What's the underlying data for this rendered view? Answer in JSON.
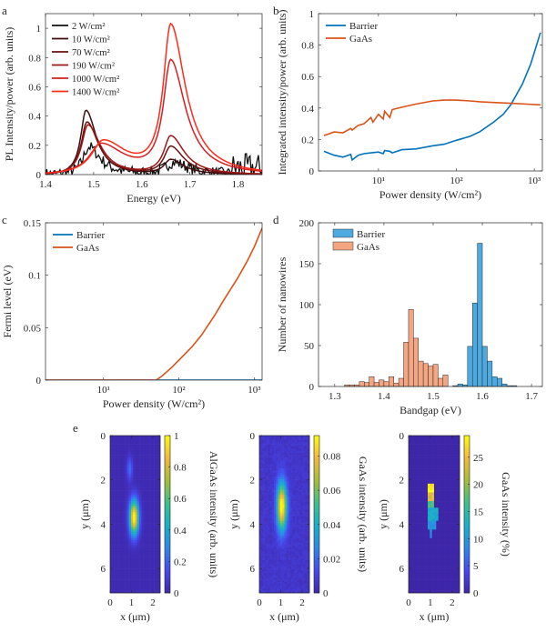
{
  "chart_data": [
    {
      "panel": "a",
      "type": "line",
      "xlabel": "Energy (eV)",
      "ylabel": "PL Intensity/power (arb. units)",
      "xlim": [
        1.4,
        1.85
      ],
      "ylim": [
        0,
        1.1
      ],
      "xticks": [
        1.4,
        1.5,
        1.6,
        1.7,
        1.8
      ],
      "xtick_labels": [
        "1.4",
        "1.5",
        "1.6",
        "1.7",
        "1.8"
      ],
      "yticks": [
        0,
        0.2,
        0.4,
        0.6,
        0.8,
        1
      ],
      "ytick_labels": [
        "0",
        "0.2",
        "0.4",
        "0.6",
        "0.8",
        "1"
      ],
      "legend": "top-left",
      "series": [
        {
          "name": "2 W/cm²",
          "color": "#111111",
          "noise": 0.05,
          "peaks": [
            {
              "center": 1.49,
              "height": 0.19,
              "width": 0.022
            },
            {
              "center": 1.665,
              "height": 0.08,
              "width": 0.03
            }
          ]
        },
        {
          "name": "10 W/cm²",
          "color": "#3f0d0d",
          "peaks": [
            {
              "center": 1.484,
              "height": 0.44,
              "width": 0.02
            },
            {
              "center": 1.66,
              "height": 0.1,
              "width": 0.025
            }
          ]
        },
        {
          "name": "70 W/cm²",
          "color": "#6a1111",
          "peaks": [
            {
              "center": 1.486,
              "height": 0.36,
              "width": 0.022
            },
            {
              "center": 1.66,
              "height": 0.19,
              "width": 0.025
            }
          ]
        },
        {
          "name": "190 W/cm²",
          "color": "#9e1616",
          "peaks": [
            {
              "center": 1.488,
              "height": 0.34,
              "width": 0.024
            },
            {
              "center": 1.66,
              "height": 0.26,
              "width": 0.026
            }
          ]
        },
        {
          "name": "1000 W/cm²",
          "color": "#d41f1f",
          "peaks": [
            {
              "center": 1.515,
              "height": 0.21,
              "width": 0.045
            },
            {
              "center": 1.66,
              "height": 0.76,
              "width": 0.028
            }
          ]
        },
        {
          "name": "1400 W/cm²",
          "color": "#ff2a1a",
          "peaks": [
            {
              "center": 1.52,
              "height": 0.23,
              "width": 0.045
            },
            {
              "center": 1.66,
              "height": 1.0,
              "width": 0.028
            }
          ]
        }
      ]
    },
    {
      "panel": "b",
      "type": "line",
      "xscale": "log",
      "xlabel": "Power density (W/cm²)",
      "ylabel": "Integrated intensity/power (arb. units)",
      "xlim": [
        1.7,
        1270
      ],
      "ylim": [
        0,
        1
      ],
      "xticks": [
        10,
        100,
        1000
      ],
      "xtick_labels": [
        "10¹",
        "10²",
        "10³"
      ],
      "yticks": [
        0,
        0.2,
        0.4,
        0.6,
        0.8,
        1
      ],
      "ytick_labels": [
        "0",
        "0.2",
        "0.4",
        "0.6",
        "0.8",
        "1"
      ],
      "legend": "top-left",
      "series": [
        {
          "name": "Barrier",
          "color": "#0072BD",
          "x": [
            2,
            2.7,
            3.5,
            4.4,
            4.6,
            5.5,
            6.5,
            8,
            10,
            11.5,
            12,
            14,
            15,
            20,
            30,
            50,
            70,
            100,
            150,
            200,
            300,
            400,
            500,
            700,
            900,
            1200
          ],
          "y": [
            0.125,
            0.1,
            0.088,
            0.105,
            0.07,
            0.1,
            0.11,
            0.115,
            0.12,
            0.11,
            0.13,
            0.125,
            0.115,
            0.135,
            0.14,
            0.16,
            0.17,
            0.195,
            0.22,
            0.25,
            0.31,
            0.36,
            0.42,
            0.55,
            0.68,
            0.88
          ]
        },
        {
          "name": "GaAs",
          "color": "#D95319",
          "x": [
            2,
            2.7,
            3.5,
            4.4,
            4.6,
            5.5,
            6.5,
            8,
            8.5,
            10,
            11.5,
            12,
            14,
            15,
            20,
            30,
            50,
            70,
            100,
            150,
            200,
            300,
            500,
            800,
            1200
          ],
          "y": [
            0.225,
            0.248,
            0.243,
            0.27,
            0.26,
            0.29,
            0.3,
            0.34,
            0.31,
            0.36,
            0.33,
            0.38,
            0.34,
            0.39,
            0.405,
            0.425,
            0.445,
            0.45,
            0.45,
            0.445,
            0.44,
            0.435,
            0.43,
            0.425,
            0.42
          ]
        }
      ]
    },
    {
      "panel": "c",
      "type": "line",
      "xscale": "log",
      "xlabel": "Power density (W/cm²)",
      "ylabel": "Fermi level (eV)",
      "xlim": [
        1.7,
        1270
      ],
      "ylim": [
        0,
        0.15
      ],
      "xticks": [
        10,
        100,
        1000
      ],
      "xtick_labels": [
        "10¹",
        "10²",
        "10³"
      ],
      "yticks": [
        0,
        0.05,
        0.1,
        0.15
      ],
      "ytick_labels": [
        "0",
        "0.05",
        "0.1",
        "0.15"
      ],
      "legend": "top-left",
      "series": [
        {
          "name": "Barrier",
          "color": "#0072BD",
          "x": [
            1.7,
            1270
          ],
          "y": [
            0,
            0
          ]
        },
        {
          "name": "GaAs",
          "color": "#D95319",
          "x": [
            1.7,
            50,
            60,
            80,
            100,
            150,
            200,
            300,
            400,
            600,
            800,
            1000,
            1270
          ],
          "y": [
            0,
            0,
            0.004,
            0.012,
            0.019,
            0.032,
            0.043,
            0.062,
            0.077,
            0.097,
            0.113,
            0.127,
            0.145
          ]
        }
      ]
    },
    {
      "panel": "d",
      "type": "bar",
      "xlabel": "Bandgap (eV)",
      "ylabel": "Number of nanowires",
      "xlim": [
        1.267,
        1.722
      ],
      "ylim": [
        0,
        200
      ],
      "xticks": [
        1.3,
        1.4,
        1.5,
        1.6,
        1.7
      ],
      "xtick_labels": [
        "1.3",
        "1.4",
        "1.5",
        "1.6",
        "1.7"
      ],
      "yticks": [
        0,
        50,
        100,
        150,
        200
      ],
      "ytick_labels": [
        "0",
        "50",
        "100",
        "150",
        "200"
      ],
      "bin_width": 0.01,
      "legend": "top-left",
      "series": [
        {
          "name": "Barrier",
          "color": "#4DAAE0",
          "bin_start": 1.54,
          "values": [
            1,
            3,
            2,
            49,
            102,
            175,
            49,
            31,
            12,
            10,
            3,
            1,
            1
          ]
        },
        {
          "name": "GaAs",
          "color": "#F4A582",
          "bin_start": 1.32,
          "values": [
            2,
            2,
            2,
            6,
            5,
            12,
            5,
            8,
            6,
            12,
            4,
            10,
            54,
            94,
            59,
            31,
            28,
            25,
            27,
            10,
            14
          ]
        }
      ]
    },
    {
      "panel": "e",
      "type": "heatmap",
      "maps": [
        {
          "xlabel": "x (μm)",
          "ylabel": "y (μm)",
          "colorbar_label": "AlGaAs intensity (arb. units)",
          "xlim": [
            0,
            2.34
          ],
          "ylim": [
            0,
            7.1
          ],
          "xticks": [
            0,
            1,
            2
          ],
          "xtick_labels": [
            "0",
            "1",
            "2"
          ],
          "yticks": [
            0,
            2,
            4,
            6
          ],
          "ytick_labels": [
            "0",
            "2",
            "4",
            "6"
          ],
          "clim": [
            0,
            1
          ],
          "cticks": [
            0,
            0.2,
            0.4,
            0.6,
            0.8,
            1
          ],
          "ctick_labels": [
            "0",
            "0.2",
            "0.4",
            "0.6",
            "0.8",
            "1"
          ],
          "background": 0.02,
          "blobs": [
            {
              "x": 1.12,
              "y": 3.7,
              "sx": 0.15,
              "sy": 0.55,
              "peak": 1.0
            },
            {
              "x": 0.92,
              "y": 1.5,
              "sx": 0.09,
              "sy": 0.35,
              "peak": 0.22
            }
          ]
        },
        {
          "xlabel": "x (μm)",
          "ylabel": "y (μm)",
          "colorbar_label": "GaAs intensity (arb. units)",
          "xlim": [
            0,
            2.34
          ],
          "ylim": [
            0,
            7.1
          ],
          "xticks": [
            0,
            1,
            2
          ],
          "xtick_labels": [
            "0",
            "1",
            "2"
          ],
          "yticks": [
            0,
            2,
            4,
            6
          ],
          "ytick_labels": [
            "0",
            "2",
            "4",
            "6"
          ],
          "clim": [
            0,
            0.092
          ],
          "cticks": [
            0,
            0.02,
            0.04,
            0.06,
            0.08
          ],
          "ctick_labels": [
            "0",
            "0.02",
            "0.04",
            "0.06",
            "0.08"
          ],
          "background": 0.006,
          "noise": 0.004,
          "blobs": [
            {
              "x": 1.05,
              "y": 3.2,
              "sx": 0.16,
              "sy": 0.75,
              "peak": 0.09
            }
          ]
        },
        {
          "xlabel": "x (μm)",
          "ylabel": "y (μm)",
          "colorbar_label": "GaAs intensity (%)",
          "xlim": [
            0,
            2.34
          ],
          "ylim": [
            0,
            7.1
          ],
          "xticks": [
            0,
            1,
            2
          ],
          "xtick_labels": [
            "0",
            "1",
            "2"
          ],
          "yticks": [
            0,
            2,
            4,
            6
          ],
          "ytick_labels": [
            "0",
            "2",
            "4",
            "6"
          ],
          "clim": [
            0,
            29
          ],
          "cticks": [
            0,
            5,
            10,
            15,
            20,
            25
          ],
          "ctick_labels": [
            "0",
            "5",
            "10",
            "15",
            "20",
            "25"
          ],
          "background": 0,
          "regions": [
            {
              "y": [
                2.2,
                2.6
              ],
              "x": [
                0.85,
                1.15
              ],
              "value": 28
            },
            {
              "y": [
                2.6,
                3.0
              ],
              "x": [
                0.85,
                1.2
              ],
              "value": 24
            },
            {
              "y": [
                3.0,
                3.3
              ],
              "x": [
                0.85,
                1.2
              ],
              "value": 17
            },
            {
              "y": [
                3.3,
                3.8
              ],
              "x": [
                0.85,
                1.4
              ],
              "value": 12
            },
            {
              "y": [
                3.8,
                4.2
              ],
              "x": [
                0.85,
                1.3
              ],
              "value": 10
            },
            {
              "y": [
                4.2,
                4.6
              ],
              "x": [
                0.95,
                1.12
              ],
              "value": 9
            }
          ]
        }
      ]
    }
  ],
  "panel_letters": [
    "a",
    "b",
    "c",
    "d",
    "e"
  ],
  "colormap": [
    "#3e26a8",
    "#4748f0",
    "#2e87e8",
    "#15b0cb",
    "#3dbf8b",
    "#a5be3a",
    "#f3b83b",
    "#f9fb0e"
  ]
}
